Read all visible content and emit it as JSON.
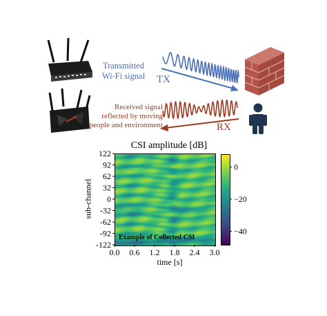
{
  "diagram": {
    "tx_caption_line1": "Transmitted",
    "tx_caption_line2": "Wi-Fi signal",
    "tx_label": "TX",
    "rx_caption_line1": "Received signal",
    "rx_caption_line2": "reflected by moving",
    "rx_caption_line3": "people and environment",
    "rx_label": "RX",
    "colors": {
      "tx": "#4a6fb5",
      "rx": "#9c3a24",
      "wall": "#b5544a",
      "person": "#1f3550"
    },
    "icons": [
      "router-top-icon",
      "router-bottom-icon",
      "brick-wall-icon",
      "person-icon"
    ]
  },
  "chart_data": {
    "type": "heatmap",
    "title": "CSI amplitude [dB]",
    "xlabel": "time [s]",
    "ylabel": "sub-channel",
    "x_ticks": [
      "0.0",
      "0.6",
      "1.2",
      "1.8",
      "2.4",
      "3.0"
    ],
    "y_ticks": [
      "122",
      "92",
      "62",
      "32",
      "0",
      "-32",
      "-62",
      "-92",
      "-122"
    ],
    "xlim": [
      0.0,
      3.0
    ],
    "ylim": [
      -122,
      122
    ],
    "colorbar_ticks": [
      "0",
      "−20",
      "−40"
    ],
    "colorbar_range": [
      -48,
      8
    ],
    "colormap": "viridis",
    "annotation": "Example of Collected CSI"
  }
}
